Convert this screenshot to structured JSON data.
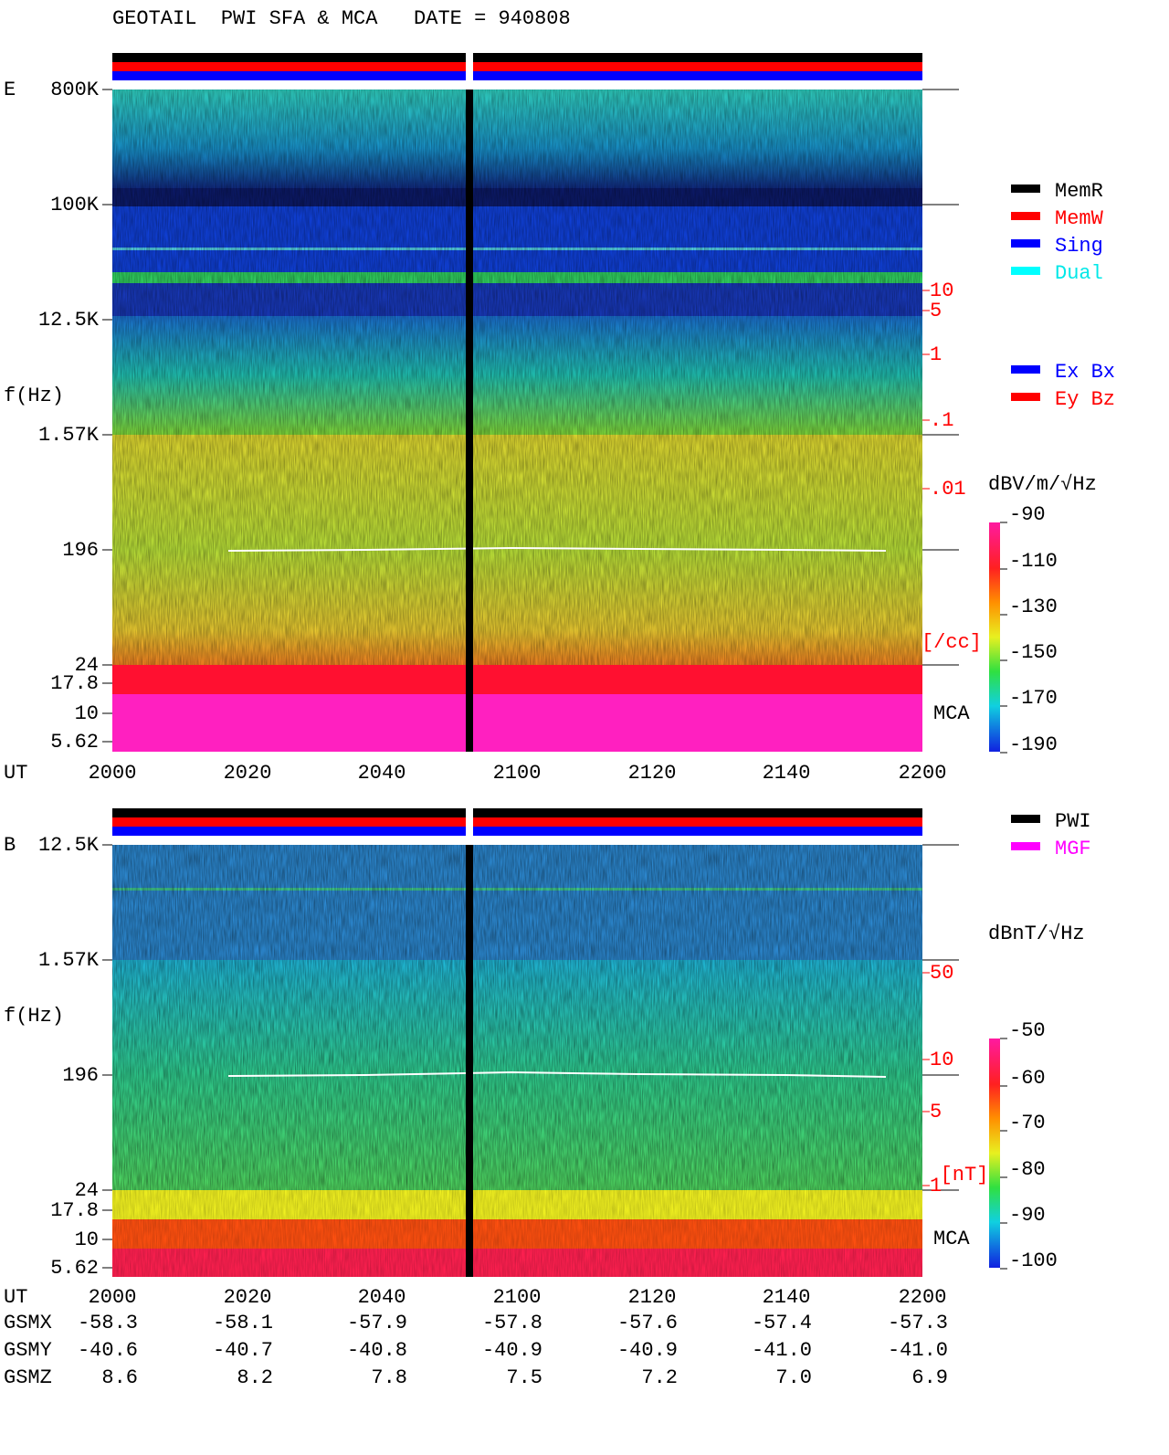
{
  "header": {
    "title": "GEOTAIL  PWI SFA & MCA   DATE = 940808"
  },
  "panels": [
    {
      "label": "E",
      "y_label": "f(Hz)",
      "x_label": "UT",
      "y_ticks": [
        "800K",
        "100K",
        "12.5K",
        "1.57K",
        "196",
        "24",
        "17.8",
        "10",
        "5.62"
      ],
      "x_ticks": [
        "2000",
        "2020",
        "2040",
        "2100",
        "2120",
        "2140",
        "2200"
      ],
      "density_ticks": [
        "10",
        "5",
        "1",
        ".1",
        ".01"
      ],
      "density_unit": "[/cc]",
      "mca": "MCA",
      "colorbar_unit": "dBV/m/√Hz",
      "colorbar_ticks": [
        "-90",
        "-110",
        "-130",
        "-150",
        "-170",
        "-190"
      ]
    },
    {
      "label": "B",
      "y_label": "f(Hz)",
      "x_label": "UT",
      "y_ticks": [
        "12.5K",
        "1.57K",
        "196",
        "24",
        "17.8",
        "10",
        "5.62"
      ],
      "x_ticks": [
        "2000",
        "2020",
        "2040",
        "2100",
        "2120",
        "2140",
        "2200"
      ],
      "density_ticks": [
        "50",
        "10",
        "5",
        "1"
      ],
      "density_unit": "[nT]",
      "mca": "MCA",
      "colorbar_unit": "dBnT/√Hz",
      "colorbar_ticks": [
        "-50",
        "-60",
        "-70",
        "-80",
        "-90",
        "-100"
      ]
    }
  ],
  "legend_modes": [
    "MemR",
    "MemW",
    "Sing",
    "Dual"
  ],
  "legend_antennas": [
    "Ex Bx",
    "Ey Bz"
  ],
  "legend_sources": [
    "PWI",
    "MGF"
  ],
  "orbit": [
    {
      "name": "GSMX",
      "values": [
        "-58.3",
        "-58.1",
        "-57.9",
        "-57.8",
        "-57.6",
        "-57.4",
        "-57.3"
      ]
    },
    {
      "name": "GSMY",
      "values": [
        "-40.6",
        "-40.7",
        "-40.8",
        "-40.9",
        "-40.9",
        "-41.0",
        "-41.0"
      ]
    },
    {
      "name": "GSMZ",
      "values": [
        "8.6",
        "8.2",
        "7.8",
        "7.5",
        "7.2",
        "7.0",
        "6.9"
      ]
    }
  ]
}
